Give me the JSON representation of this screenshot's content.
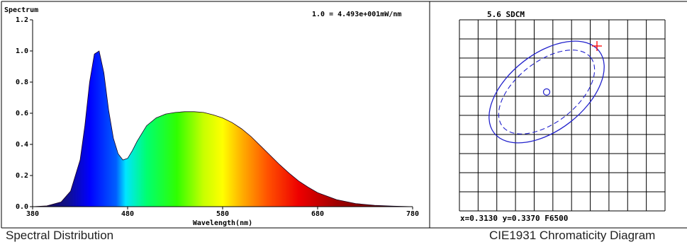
{
  "spectrum_panel": {
    "title": "Spectrum",
    "scale_note": "1.0 = 4.493e+001mW/nm",
    "xlabel": "Wavelength(nm)",
    "caption": "Spectral Distribution"
  },
  "cie_panel": {
    "sdcm_label": "5.6 SDCM",
    "coords_label": "x=0.3130 y=0.3370 F6500",
    "caption": "CIE1931 Chromaticity Diagram"
  },
  "chart_data": [
    {
      "type": "area",
      "title": "Spectrum",
      "xlabel": "Wavelength(nm)",
      "ylabel": "",
      "xlim": [
        380,
        780
      ],
      "ylim": [
        0,
        1.2
      ],
      "x_ticks": [
        "380",
        "480",
        "580",
        "680",
        "780"
      ],
      "y_ticks": [
        "0.0",
        "0.2",
        "0.4",
        "0.6",
        "0.8",
        "1.0",
        "1.2"
      ],
      "x": [
        380,
        395,
        410,
        420,
        430,
        435,
        440,
        445,
        450,
        455,
        460,
        465,
        470,
        475,
        480,
        485,
        490,
        500,
        510,
        520,
        530,
        540,
        550,
        560,
        570,
        580,
        590,
        600,
        610,
        620,
        630,
        640,
        650,
        660,
        670,
        680,
        700,
        720,
        740,
        760,
        780
      ],
      "y": [
        0.0,
        0.005,
        0.03,
        0.1,
        0.3,
        0.52,
        0.8,
        0.98,
        1.0,
        0.86,
        0.62,
        0.44,
        0.34,
        0.3,
        0.31,
        0.36,
        0.42,
        0.52,
        0.57,
        0.595,
        0.605,
        0.61,
        0.61,
        0.605,
        0.59,
        0.57,
        0.54,
        0.5,
        0.45,
        0.39,
        0.33,
        0.27,
        0.215,
        0.165,
        0.125,
        0.09,
        0.045,
        0.02,
        0.008,
        0.003,
        0.0
      ]
    },
    {
      "type": "scatter",
      "title": "5.6 SDCM",
      "grid": true,
      "annotation": "x=0.3130 y=0.3370 F6500",
      "points": [
        {
          "name": "target",
          "marker": "circle",
          "x": 0.313,
          "y": 0.337
        },
        {
          "name": "measured",
          "marker": "plus",
          "color": "#ff0000"
        }
      ]
    }
  ],
  "colors": {
    "ellipse": "#2222cc",
    "measured_marker": "#ff0000",
    "grid": "#000000"
  }
}
